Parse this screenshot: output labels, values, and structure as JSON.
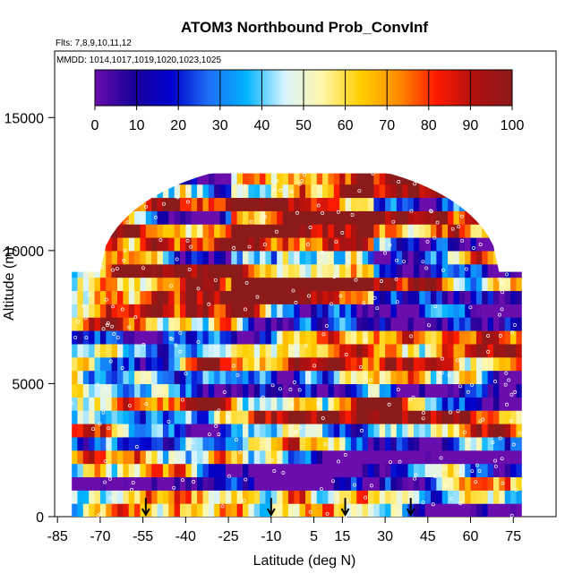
{
  "chart_data": {
    "type": "heatmap",
    "title": "ATOM3 Northbound Prob_ConvInf",
    "flights_note": "Flts: 7,8,9,10,11,12",
    "dates_note": "MMDD: 1014,1017,1019,1020,1023,1025",
    "xlabel": "Latitude (deg N)",
    "ylabel": "Altitude (m)",
    "xlim": [
      -86,
      90
    ],
    "ylim": [
      0,
      17500
    ],
    "x_ticks": [
      -85,
      -70,
      -55,
      -40,
      -25,
      -10,
      5,
      15,
      30,
      45,
      60,
      75
    ],
    "y_ticks": [
      0,
      5000,
      10000,
      15000
    ],
    "colorbar": {
      "ticks": [
        0,
        10,
        20,
        30,
        40,
        50,
        60,
        70,
        80,
        90,
        100
      ],
      "range": [
        0,
        100
      ],
      "colors": [
        "#6a0dad",
        "#1a0099",
        "#0000cc",
        "#1e6ef5",
        "#00b4ff",
        "#d8f4ff",
        "#fff6a8",
        "#ffd000",
        "#ff8c00",
        "#ff1a00",
        "#b01010",
        "#8b1a1a"
      ]
    },
    "arrows_latitude": [
      -54,
      -10,
      16,
      39
    ],
    "description_values": {
      "altitude_bins_m": [
        250,
        750,
        1250,
        1750,
        2250,
        2750,
        3250,
        3750,
        4250,
        4750,
        5250,
        5750,
        6250,
        6750,
        7250,
        7750,
        8250,
        8750,
        9250,
        9750,
        10250,
        10750,
        11250,
        11750,
        12250,
        12750
      ],
      "lat_min": -80,
      "lat_max": 78
    }
  }
}
